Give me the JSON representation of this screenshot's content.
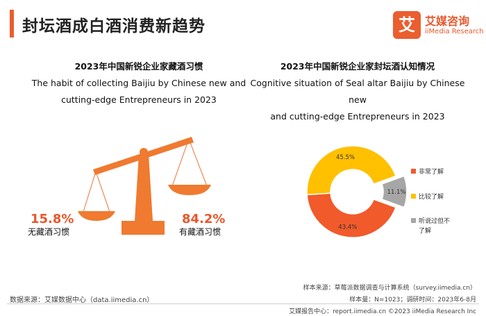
{
  "header": {
    "title": "封坛酒成白酒消费新趋势",
    "logo_badge": "艾",
    "logo_cn": "艾媒咨询",
    "logo_en": "iiMedia Research"
  },
  "left_panel": {
    "title_cn": "2023年中国新锐企业家藏酒习惯",
    "title_en_line1": "The habit of collecting Baijiu by Chinese new and",
    "title_en_line2": "cutting-edge Entrepreneurs in 2023"
  },
  "right_panel": {
    "title_cn": "2023年中国新锐企业家封坛酒认知情况",
    "title_en_line1": "Cognitive situation of Seal altar Baijiu by Chinese new",
    "title_en_line2": "and cutting-edge Entrepreneurs in 2023"
  },
  "chart_data": [
    {
      "type": "scale",
      "title": "2023年中国新锐企业家藏酒习惯",
      "categories": [
        "无藏酒习惯",
        "有藏酒习惯"
      ],
      "values": [
        15.8,
        84.2
      ],
      "value_labels": [
        "15.8%",
        "84.2%"
      ],
      "unit": "%"
    },
    {
      "type": "pie",
      "variant": "donut-exploded",
      "title": "2023年中国新锐企业家封坛酒认知情况",
      "categories": [
        "非常了解",
        "比较了解",
        "听说过但不了解"
      ],
      "values": [
        43.4,
        45.5,
        11.1
      ],
      "value_labels": [
        "43.4%",
        "45.5%",
        "11.1%"
      ],
      "colors": [
        "#f15a2b",
        "#ffc000",
        "#a6a6a6"
      ],
      "legend": [
        "非常了解",
        "比较了解",
        "听说过但不",
        "了解"
      ],
      "legend_position": "right"
    }
  ],
  "footer": {
    "source_left": "数据来源：艾媒数据中心（data.iimedia.cn）",
    "sample_source": "样本来源：草莓派数据调查与计算系统（survey.iimedia.cn）",
    "sample_size": "样本量：N=1023；调研时间：2023年6-8月",
    "copyright": "艾媒报告中心：report.iimedia.cn  ©2023  iiMedia Research  Inc"
  }
}
